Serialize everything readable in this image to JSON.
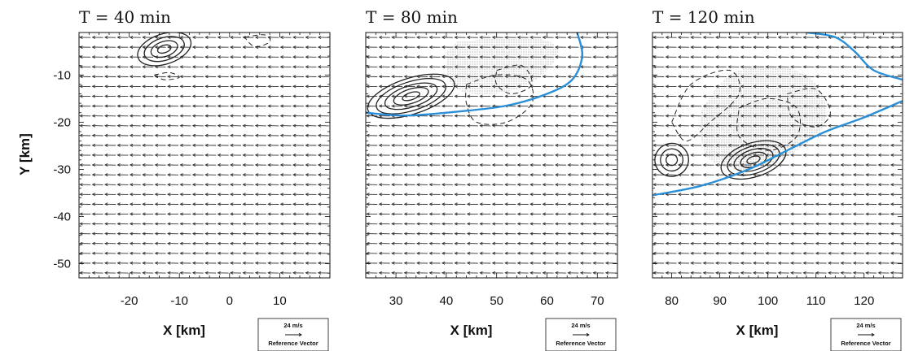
{
  "figure": {
    "ylabel": "Y [km]",
    "reference_vector": {
      "speed_label": "24 m/s",
      "caption": "Reference Vector"
    }
  },
  "colors": {
    "front_line": "#2a8fd6",
    "contour": "#222222",
    "shading": "#bdbdbd",
    "vector": "#333333"
  },
  "chart_data": [
    {
      "type": "vector-field",
      "title": "T = 40 min",
      "xlabel": "X [km]",
      "ylabel": "Y [km]",
      "xlim": [
        -30,
        20
      ],
      "ylim": [
        -53,
        -1
      ],
      "xticks": [
        -20,
        -10,
        0,
        10
      ],
      "yticks": [
        -10,
        -20,
        -30,
        -40,
        -50
      ],
      "wind": {
        "u": -5.6,
        "v": 0.1
      },
      "front_line": [],
      "shaded_regions": [],
      "solid_contour_centers": [
        {
          "x": -13,
          "y": -4.5,
          "rx": 5.5,
          "ry": 3.2,
          "rings": 4
        }
      ],
      "dashed_contours": [
        [
          [
            -15,
            -10
          ],
          [
            -12,
            -9.5
          ],
          [
            -10,
            -10.5
          ],
          [
            -13,
            -11
          ],
          [
            -15,
            -10
          ]
        ],
        [
          [
            3,
            -2
          ],
          [
            7,
            -1.5
          ],
          [
            8,
            -3
          ],
          [
            5,
            -4
          ],
          [
            3,
            -2
          ]
        ]
      ]
    },
    {
      "type": "vector-field",
      "title": "T = 80 min",
      "xlabel": "X [km]",
      "ylabel": "",
      "xlim": [
        24,
        74
      ],
      "ylim": [
        -53,
        -1
      ],
      "xticks": [
        30,
        40,
        50,
        60,
        70
      ],
      "yticks": [
        -10,
        -20,
        -30,
        -40,
        -50
      ],
      "wind": {
        "u": -5.6,
        "v": 0.1
      },
      "front_line": [
        [
          24,
          -18
        ],
        [
          32,
          -18.6
        ],
        [
          42,
          -17.8
        ],
        [
          52,
          -16.5
        ],
        [
          60,
          -14
        ],
        [
          65,
          -11
        ],
        [
          67,
          -6
        ],
        [
          66,
          -1
        ]
      ],
      "shaded_regions": [
        [
          [
            42,
            -3
          ],
          [
            55,
            -2
          ],
          [
            62,
            -4
          ],
          [
            60,
            -9
          ],
          [
            54,
            -13
          ],
          [
            46,
            -14
          ],
          [
            41,
            -12
          ],
          [
            40,
            -6
          ],
          [
            42,
            -3
          ]
        ]
      ],
      "solid_contour_centers": [
        {
          "x": 33,
          "y": -14.5,
          "rx": 9,
          "ry": 3.8,
          "rings": 5
        }
      ],
      "dashed_contours": [
        [
          [
            44,
            -12
          ],
          [
            50,
            -10
          ],
          [
            56,
            -11
          ],
          [
            57,
            -16
          ],
          [
            52,
            -20
          ],
          [
            46,
            -20
          ],
          [
            44,
            -16
          ],
          [
            44,
            -12
          ]
        ],
        [
          [
            50,
            -9
          ],
          [
            55,
            -8
          ],
          [
            57,
            -12
          ],
          [
            53,
            -14
          ],
          [
            50,
            -12
          ],
          [
            50,
            -9
          ]
        ]
      ]
    },
    {
      "type": "vector-field",
      "title": "T = 120 min",
      "xlabel": "X [km]",
      "ylabel": "",
      "xlim": [
        76,
        128
      ],
      "ylim": [
        -53,
        -1
      ],
      "xticks": [
        80,
        90,
        100,
        110,
        120
      ],
      "yticks": [
        -10,
        -20,
        -30,
        -40,
        -50
      ],
      "wind": {
        "u": -5.6,
        "v": 0.1
      },
      "front_line": [
        [
          76,
          -35.5
        ],
        [
          86,
          -33.5
        ],
        [
          96,
          -30
        ],
        [
          104,
          -26
        ],
        [
          112,
          -22
        ],
        [
          120,
          -19
        ],
        [
          128,
          -15.5
        ]
      ],
      "front_line_2": [
        [
          108,
          -1
        ],
        [
          114,
          -2
        ],
        [
          118,
          -5
        ],
        [
          122,
          -9
        ],
        [
          128,
          -11
        ]
      ],
      "shaded_regions": [
        [
          [
            86,
            -18
          ],
          [
            92,
            -10
          ],
          [
            102,
            -8
          ],
          [
            110,
            -12
          ],
          [
            112,
            -20
          ],
          [
            106,
            -26
          ],
          [
            96,
            -30
          ],
          [
            88,
            -28
          ],
          [
            86,
            -22
          ],
          [
            86,
            -18
          ]
        ]
      ],
      "solid_contour_centers": [
        {
          "x": 97,
          "y": -28,
          "rx": 7,
          "ry": 3.6,
          "rings": 5
        },
        {
          "x": 80,
          "y": -28,
          "rx": 3.5,
          "ry": 3.5,
          "rings": 3
        }
      ],
      "dashed_contours": [
        [
          [
            80,
            -20
          ],
          [
            84,
            -12
          ],
          [
            92,
            -9
          ],
          [
            94,
            -14
          ],
          [
            88,
            -20
          ],
          [
            83,
            -24
          ],
          [
            80,
            -20
          ]
        ],
        [
          [
            94,
            -17
          ],
          [
            100,
            -15
          ],
          [
            106,
            -17
          ],
          [
            106,
            -23
          ],
          [
            100,
            -26
          ],
          [
            94,
            -23
          ],
          [
            94,
            -17
          ]
        ],
        [
          [
            104,
            -14
          ],
          [
            110,
            -13
          ],
          [
            113,
            -18
          ],
          [
            110,
            -21
          ],
          [
            105,
            -19
          ],
          [
            104,
            -14
          ]
        ]
      ]
    }
  ]
}
